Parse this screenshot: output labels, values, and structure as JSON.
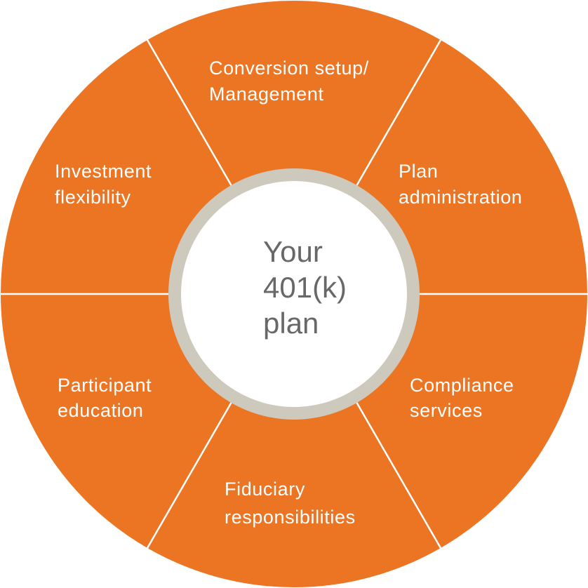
{
  "center": {
    "lines": [
      "Your",
      "401(k)",
      "plan"
    ]
  },
  "segments": [
    {
      "id": "conversion",
      "lines": [
        "Conversion setup/",
        "Management"
      ]
    },
    {
      "id": "plan-admin",
      "lines": [
        "Plan",
        "administration"
      ]
    },
    {
      "id": "compliance",
      "lines": [
        "Compliance",
        "services"
      ]
    },
    {
      "id": "fiduciary",
      "lines": [
        "Fiduciary",
        "responsibilities"
      ]
    },
    {
      "id": "participant",
      "lines": [
        "Participant",
        "education"
      ]
    },
    {
      "id": "investment",
      "lines": [
        "Investment",
        "flexibility"
      ]
    }
  ],
  "colors": {
    "segment_fill": "#ec7524",
    "divider": "#ffffff",
    "ring": "#cdc9bd",
    "center_fill": "#ffffff",
    "segment_text": "#ffffff",
    "center_text": "#686868"
  }
}
